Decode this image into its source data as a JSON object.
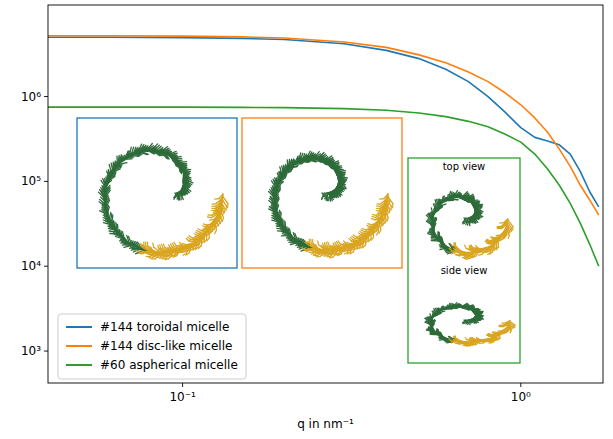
{
  "chart_data": {
    "type": "line",
    "x_label": "q in nm⁻¹",
    "log": true,
    "grid": false,
    "legend": "lower left",
    "xlim": [
      0.04,
      1.75
    ],
    "ylim": [
      420,
      12000000
    ],
    "xticks": [
      {
        "value": 0.1,
        "label": "10⁻¹"
      },
      {
        "value": 1,
        "label": "10⁰"
      }
    ],
    "yticks": [
      {
        "value": 1000,
        "label": "10³"
      },
      {
        "value": 10000,
        "label": "10⁴"
      },
      {
        "value": 100000,
        "label": "10⁵"
      },
      {
        "value": 1000000,
        "label": "10⁶"
      }
    ],
    "x": [
      0.04,
      0.06,
      0.1,
      0.15,
      0.2,
      0.3,
      0.4,
      0.5,
      0.6,
      0.7,
      0.8,
      0.9,
      1.0,
      1.1,
      1.2,
      1.3,
      1.4,
      1.5,
      1.6,
      1.7
    ],
    "series": [
      {
        "name": "#144 toroidal micelle",
        "color": "#1f77b4",
        "values": [
          5000000,
          5000000,
          4950000,
          4850000,
          4700000,
          4200000,
          3500000,
          2800000,
          2100000,
          1500000,
          1000000,
          650000,
          430000,
          330000,
          300000,
          270000,
          210000,
          130000,
          75000,
          50000
        ]
      },
      {
        "name": "#144 disc-like micelle",
        "color": "#ff7f0e",
        "values": [
          5200000,
          5200000,
          5150000,
          5050000,
          4900000,
          4400000,
          3800000,
          3100000,
          2500000,
          1950000,
          1500000,
          1100000,
          800000,
          560000,
          380000,
          240000,
          150000,
          90000,
          60000,
          40000
        ]
      },
      {
        "name": "#60 aspherical micelle",
        "color": "#2ca02c",
        "values": [
          750000,
          750000,
          750000,
          745000,
          740000,
          720000,
          690000,
          640000,
          580000,
          510000,
          440000,
          360000,
          290000,
          210000,
          140000,
          90000,
          55000,
          32000,
          18000,
          10000
        ]
      }
    ],
    "annotations": [
      "top view",
      "side view"
    ]
  }
}
